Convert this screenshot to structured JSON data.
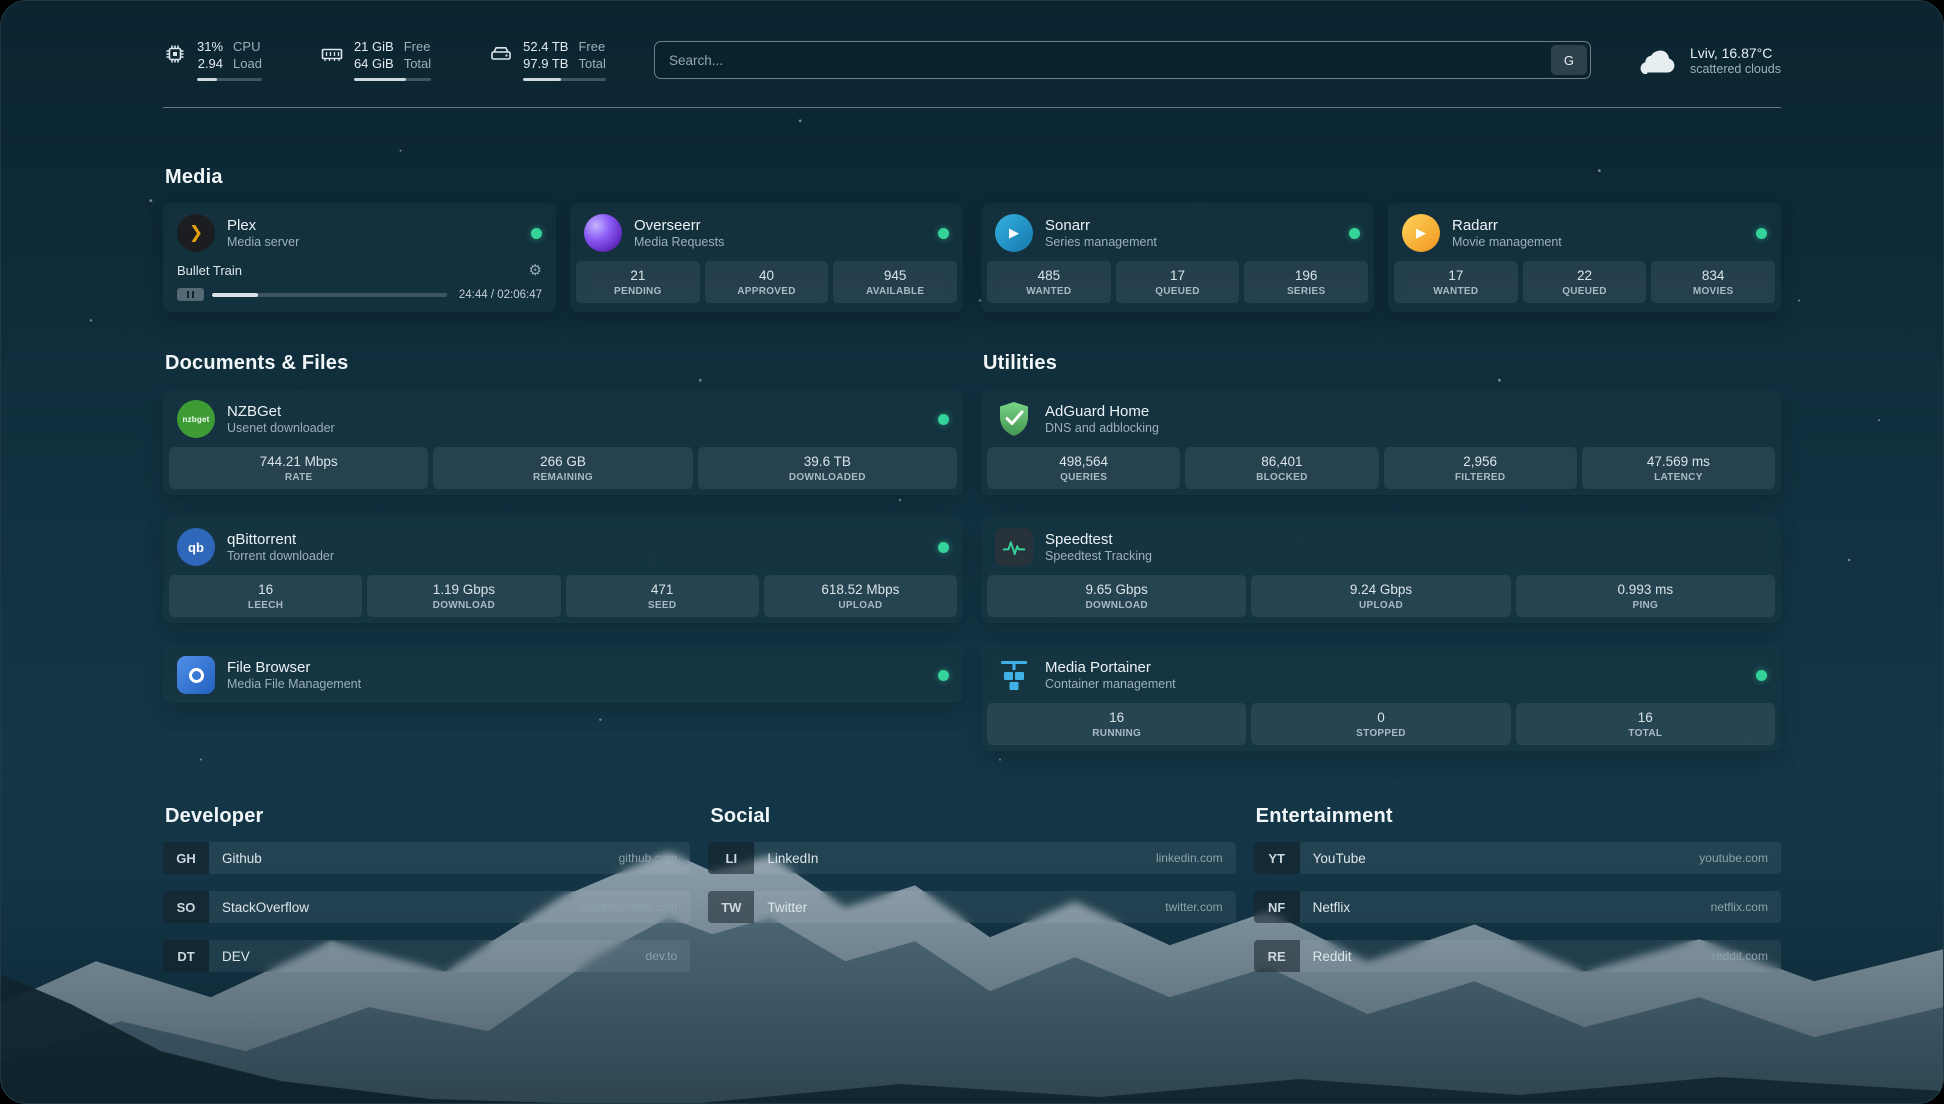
{
  "colors": {
    "status_online": "#34d399",
    "plex_brand": "#e5a00d",
    "sonarr_brand": "#35b0e0",
    "radarr_brand": "#f0961e",
    "nzbget_brand": "#3e9c35",
    "qbittorrent_brand": "#2f67ba",
    "adguard_brand": "#5bb466",
    "speedtest_brand": "#37d39a",
    "portainer_brand": "#41b0e4"
  },
  "icons": {
    "plex_glyph": "❯",
    "sonarr_glyph": "▶",
    "radarr_glyph": "▶",
    "nzbget_text": "nzbget",
    "qbittorrent_text": "qb",
    "gear_glyph": "⚙"
  },
  "topbar": {
    "resources": [
      {
        "name": "cpu",
        "rows": [
          {
            "value": "31%",
            "label": "CPU"
          },
          {
            "value": "2.94",
            "label": "Load"
          }
        ],
        "bar_percent": 31
      },
      {
        "name": "memory",
        "rows": [
          {
            "value": "21 GiB",
            "label": "Free"
          },
          {
            "value": "64 GiB",
            "label": "Total"
          }
        ],
        "bar_percent": 67
      },
      {
        "name": "disk",
        "rows": [
          {
            "value": "52.4 TB",
            "label": "Free"
          },
          {
            "value": "97.9 TB",
            "label": "Total"
          }
        ],
        "bar_percent": 46
      }
    ],
    "search": {
      "placeholder": "Search...",
      "provider_label": "G"
    },
    "weather": {
      "location": "Lviv, 16.87°C",
      "condition": "scattered clouds"
    }
  },
  "groups": {
    "media": {
      "title": "Media",
      "services": [
        {
          "name": "Plex",
          "subtitle": "Media server",
          "status": "online",
          "player": {
            "title": "Bullet Train",
            "time": "24:44 / 02:06:47",
            "progress_percent": 19.5
          }
        },
        {
          "name": "Overseerr",
          "subtitle": "Media Requests",
          "status": "online",
          "stats": [
            {
              "value": "21",
              "label": "PENDING"
            },
            {
              "value": "40",
              "label": "APPROVED"
            },
            {
              "value": "945",
              "label": "AVAILABLE"
            }
          ]
        },
        {
          "name": "Sonarr",
          "subtitle": "Series management",
          "status": "online",
          "stats": [
            {
              "value": "485",
              "label": "WANTED"
            },
            {
              "value": "17",
              "label": "QUEUED"
            },
            {
              "value": "196",
              "label": "SERIES"
            }
          ]
        },
        {
          "name": "Radarr",
          "subtitle": "Movie management",
          "status": "online",
          "stats": [
            {
              "value": "17",
              "label": "WANTED"
            },
            {
              "value": "22",
              "label": "QUEUED"
            },
            {
              "value": "834",
              "label": "MOVIES"
            }
          ]
        }
      ]
    },
    "documents": {
      "title": "Documents & Files",
      "services": [
        {
          "name": "NZBGet",
          "subtitle": "Usenet downloader",
          "status": "online",
          "stats": [
            {
              "value": "744.21 Mbps",
              "label": "RATE"
            },
            {
              "value": "266 GB",
              "label": "REMAINING"
            },
            {
              "value": "39.6 TB",
              "label": "DOWNLOADED"
            }
          ]
        },
        {
          "name": "qBittorrent",
          "subtitle": "Torrent downloader",
          "status": "online",
          "stats": [
            {
              "value": "16",
              "label": "LEECH"
            },
            {
              "value": "1.19 Gbps",
              "label": "DOWNLOAD"
            },
            {
              "value": "471",
              "label": "SEED"
            },
            {
              "value": "618.52 Mbps",
              "label": "UPLOAD"
            }
          ]
        },
        {
          "name": "File Browser",
          "subtitle": "Media File Management",
          "status": "online"
        }
      ]
    },
    "utilities": {
      "title": "Utilities",
      "services": [
        {
          "name": "AdGuard Home",
          "subtitle": "DNS and adblocking",
          "stats": [
            {
              "value": "498,564",
              "label": "QUERIES"
            },
            {
              "value": "86,401",
              "label": "BLOCKED"
            },
            {
              "value": "2,956",
              "label": "FILTERED"
            },
            {
              "value": "47.569 ms",
              "label": "LATENCY"
            }
          ]
        },
        {
          "name": "Speedtest",
          "subtitle": "Speedtest Tracking",
          "stats": [
            {
              "value": "9.65 Gbps",
              "label": "DOWNLOAD"
            },
            {
              "value": "9.24 Gbps",
              "label": "UPLOAD"
            },
            {
              "value": "0.993 ms",
              "label": "PING"
            }
          ]
        },
        {
          "name": "Media Portainer",
          "subtitle": "Container management",
          "status": "online",
          "stats": [
            {
              "value": "16",
              "label": "RUNNING"
            },
            {
              "value": "0",
              "label": "STOPPED"
            },
            {
              "value": "16",
              "label": "TOTAL"
            }
          ]
        }
      ]
    }
  },
  "bookmarks": {
    "groups": [
      {
        "title": "Developer",
        "items": [
          {
            "abbr": "GH",
            "name": "Github",
            "domain": "github.com"
          },
          {
            "abbr": "SO",
            "name": "StackOverflow",
            "domain": "stackoverflow.com"
          },
          {
            "abbr": "DT",
            "name": "DEV",
            "domain": "dev.to"
          }
        ]
      },
      {
        "title": "Social",
        "items": [
          {
            "abbr": "LI",
            "name": "LinkedIn",
            "domain": "linkedin.com"
          },
          {
            "abbr": "TW",
            "name": "Twitter",
            "domain": "twitter.com"
          }
        ]
      },
      {
        "title": "Entertainment",
        "items": [
          {
            "abbr": "YT",
            "name": "YouTube",
            "domain": "youtube.com"
          },
          {
            "abbr": "NF",
            "name": "Netflix",
            "domain": "netflix.com"
          },
          {
            "abbr": "RE",
            "name": "Reddit",
            "domain": "reddit.com"
          }
        ]
      }
    ]
  }
}
